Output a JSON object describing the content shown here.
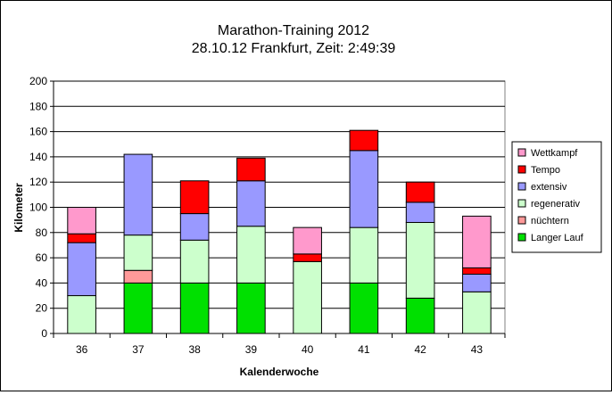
{
  "chart_data": {
    "type": "bar",
    "stacked": true,
    "title": "Marathon-Training 2012",
    "subtitle": "28.10.12 Frankfurt, Zeit: 2:49:39",
    "xlabel": "Kalenderwoche",
    "ylabel": "Kilometer",
    "ylim": [
      0,
      200
    ],
    "yticks": [
      0,
      20,
      40,
      60,
      80,
      100,
      120,
      140,
      160,
      180,
      200
    ],
    "grid": true,
    "legend_position": "right",
    "categories": [
      "36",
      "37",
      "38",
      "39",
      "40",
      "41",
      "42",
      "43"
    ],
    "series": [
      {
        "name": "Langer Lauf",
        "color": "#00e000",
        "values": [
          0,
          40,
          40,
          40,
          0,
          40,
          28,
          0
        ]
      },
      {
        "name": "nüchtern",
        "color": "#ff9999",
        "values": [
          0,
          10,
          0,
          0,
          0,
          0,
          0,
          0
        ]
      },
      {
        "name": "regenerativ",
        "color": "#ccffcc",
        "values": [
          30,
          28,
          34,
          45,
          57,
          44,
          60,
          33
        ]
      },
      {
        "name": "extensiv",
        "color": "#9999ff",
        "values": [
          42,
          64,
          21,
          36,
          0,
          61,
          16,
          14
        ]
      },
      {
        "name": "Tempo",
        "color": "#ff0000",
        "values": [
          7,
          0,
          26,
          18,
          6,
          16,
          16,
          5
        ]
      },
      {
        "name": "Wettkampf",
        "color": "#ff99cc",
        "values": [
          21,
          0,
          0,
          0,
          21,
          0,
          0,
          41
        ]
      }
    ],
    "legend_order": [
      "Wettkampf",
      "Tempo",
      "extensiv",
      "regenerativ",
      "nüchtern",
      "Langer Lauf"
    ],
    "plot_background": "#ffffff",
    "grid_color": "#000000"
  }
}
